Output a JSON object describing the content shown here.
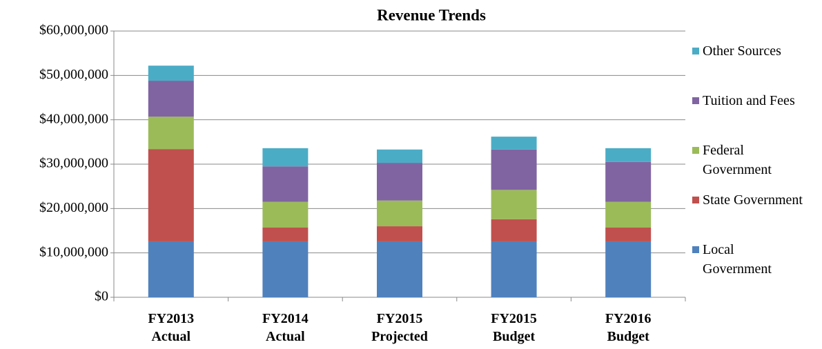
{
  "chart_data": {
    "type": "stacked_bar",
    "title": "Revenue Trends",
    "categories": [
      "FY2013 Actual",
      "FY2014 Actual",
      "FY2015 Projected",
      "FY2015 Budget",
      "FY2016 Budget"
    ],
    "series": [
      {
        "name": "Local Government",
        "color": "#4f81bd",
        "values": [
          12600000,
          12600000,
          12600000,
          12600000,
          12600000
        ]
      },
      {
        "name": "State Government",
        "color": "#c0504d",
        "values": [
          20800000,
          3100000,
          3400000,
          5000000,
          3100000
        ]
      },
      {
        "name": "Federal Government",
        "color": "#9bbb59",
        "values": [
          7300000,
          5800000,
          5800000,
          6600000,
          5800000
        ]
      },
      {
        "name": "Tuition and Fees",
        "color": "#8064a2",
        "values": [
          8100000,
          8000000,
          8500000,
          9100000,
          9000000
        ]
      },
      {
        "name": "Other Sources",
        "color": "#4bacc6",
        "values": [
          3400000,
          4100000,
          3000000,
          2900000,
          3100000
        ]
      }
    ],
    "ylim": [
      0,
      60000000
    ],
    "yticks": [
      {
        "value": 0,
        "label": "$0"
      },
      {
        "value": 10000000,
        "label": "$10,000,000"
      },
      {
        "value": 20000000,
        "label": "$20,000,000"
      },
      {
        "value": 30000000,
        "label": "$30,000,000"
      },
      {
        "value": 40000000,
        "label": "$40,000,000"
      },
      {
        "value": 50000000,
        "label": "$50,000,000"
      },
      {
        "value": 60000000,
        "label": "$60,000,000"
      }
    ],
    "grid": true,
    "legend": "right"
  }
}
